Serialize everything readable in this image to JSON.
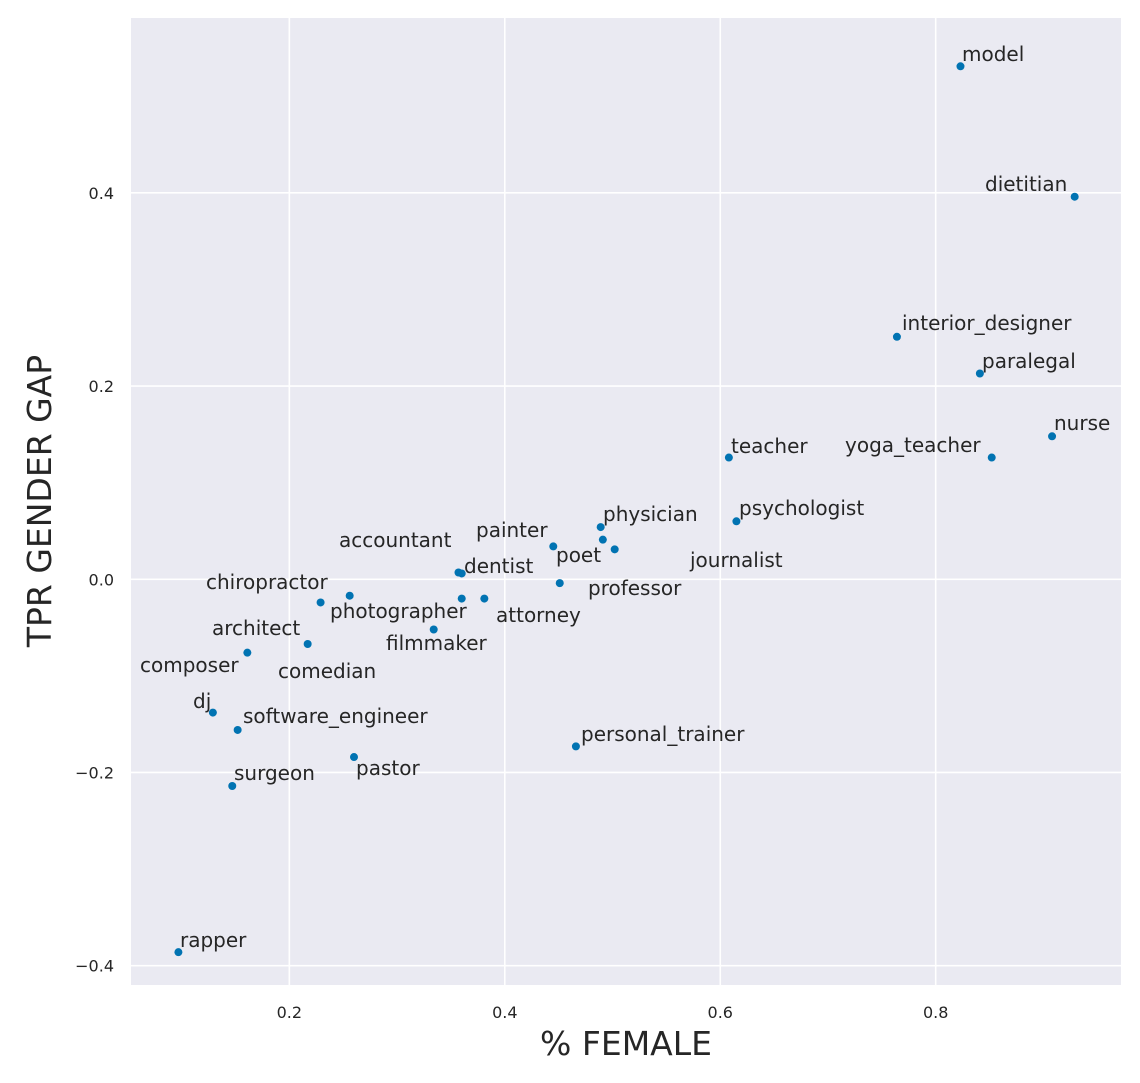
{
  "chart_data": {
    "type": "scatter",
    "title": "",
    "xlabel": "% FEMALE",
    "ylabel": "TPR GENDER GAP",
    "xlim": [
      0.053,
      0.972
    ],
    "ylim": [
      -0.42,
      0.581
    ],
    "xticks": [
      0.2,
      0.4,
      0.6,
      0.8
    ],
    "yticks": [
      -0.4,
      -0.2,
      0.0,
      0.2,
      0.4
    ],
    "xtick_labels": [
      "0.2",
      "0.4",
      "0.6",
      "0.8"
    ],
    "ytick_labels": [
      "−0.4",
      "−0.2",
      "0.0",
      "0.2",
      "0.4"
    ],
    "grid": true,
    "background_color": "#eaeaf2",
    "point_color": "#0173b2",
    "points": [
      {
        "label": "model",
        "x": 0.823,
        "y": 0.531
      },
      {
        "label": "dietitian",
        "x": 0.929,
        "y": 0.396
      },
      {
        "label": "interior_designer",
        "x": 0.764,
        "y": 0.251
      },
      {
        "label": "paralegal",
        "x": 0.841,
        "y": 0.213
      },
      {
        "label": "nurse",
        "x": 0.908,
        "y": 0.148
      },
      {
        "label": "yoga_teacher",
        "x": 0.852,
        "y": 0.126
      },
      {
        "label": "teacher",
        "x": 0.608,
        "y": 0.126
      },
      {
        "label": "psychologist",
        "x": 0.615,
        "y": 0.06
      },
      {
        "label": "physician",
        "x": 0.489,
        "y": 0.054
      },
      {
        "label": "poet",
        "x": 0.491,
        "y": 0.041
      },
      {
        "label": "journalist",
        "x": 0.502,
        "y": 0.031
      },
      {
        "label": "painter",
        "x": 0.445,
        "y": 0.034
      },
      {
        "label": "professor",
        "x": 0.451,
        "y": -0.004
      },
      {
        "label": "accountant",
        "x": 0.357,
        "y": 0.007
      },
      {
        "label": "dentist",
        "x": 0.36,
        "y": 0.006
      },
      {
        "label": "attorney",
        "x": 0.381,
        "y": -0.02
      },
      {
        "label": "photographer",
        "x": 0.36,
        "y": -0.02
      },
      {
        "label": "filmmaker",
        "x": 0.334,
        "y": -0.052
      },
      {
        "label": "chiropractor",
        "x": 0.256,
        "y": -0.017
      },
      {
        "label": "architect",
        "x": 0.229,
        "y": -0.024
      },
      {
        "label": "comedian",
        "x": 0.217,
        "y": -0.067
      },
      {
        "label": "composer",
        "x": 0.161,
        "y": -0.076
      },
      {
        "label": "dj",
        "x": 0.129,
        "y": -0.138
      },
      {
        "label": "software_engineer",
        "x": 0.152,
        "y": -0.156
      },
      {
        "label": "surgeon",
        "x": 0.147,
        "y": -0.214
      },
      {
        "label": "pastor",
        "x": 0.26,
        "y": -0.184
      },
      {
        "label": "personal_trainer",
        "x": 0.466,
        "y": -0.173
      },
      {
        "label": "rapper",
        "x": 0.097,
        "y": -0.386
      }
    ]
  }
}
